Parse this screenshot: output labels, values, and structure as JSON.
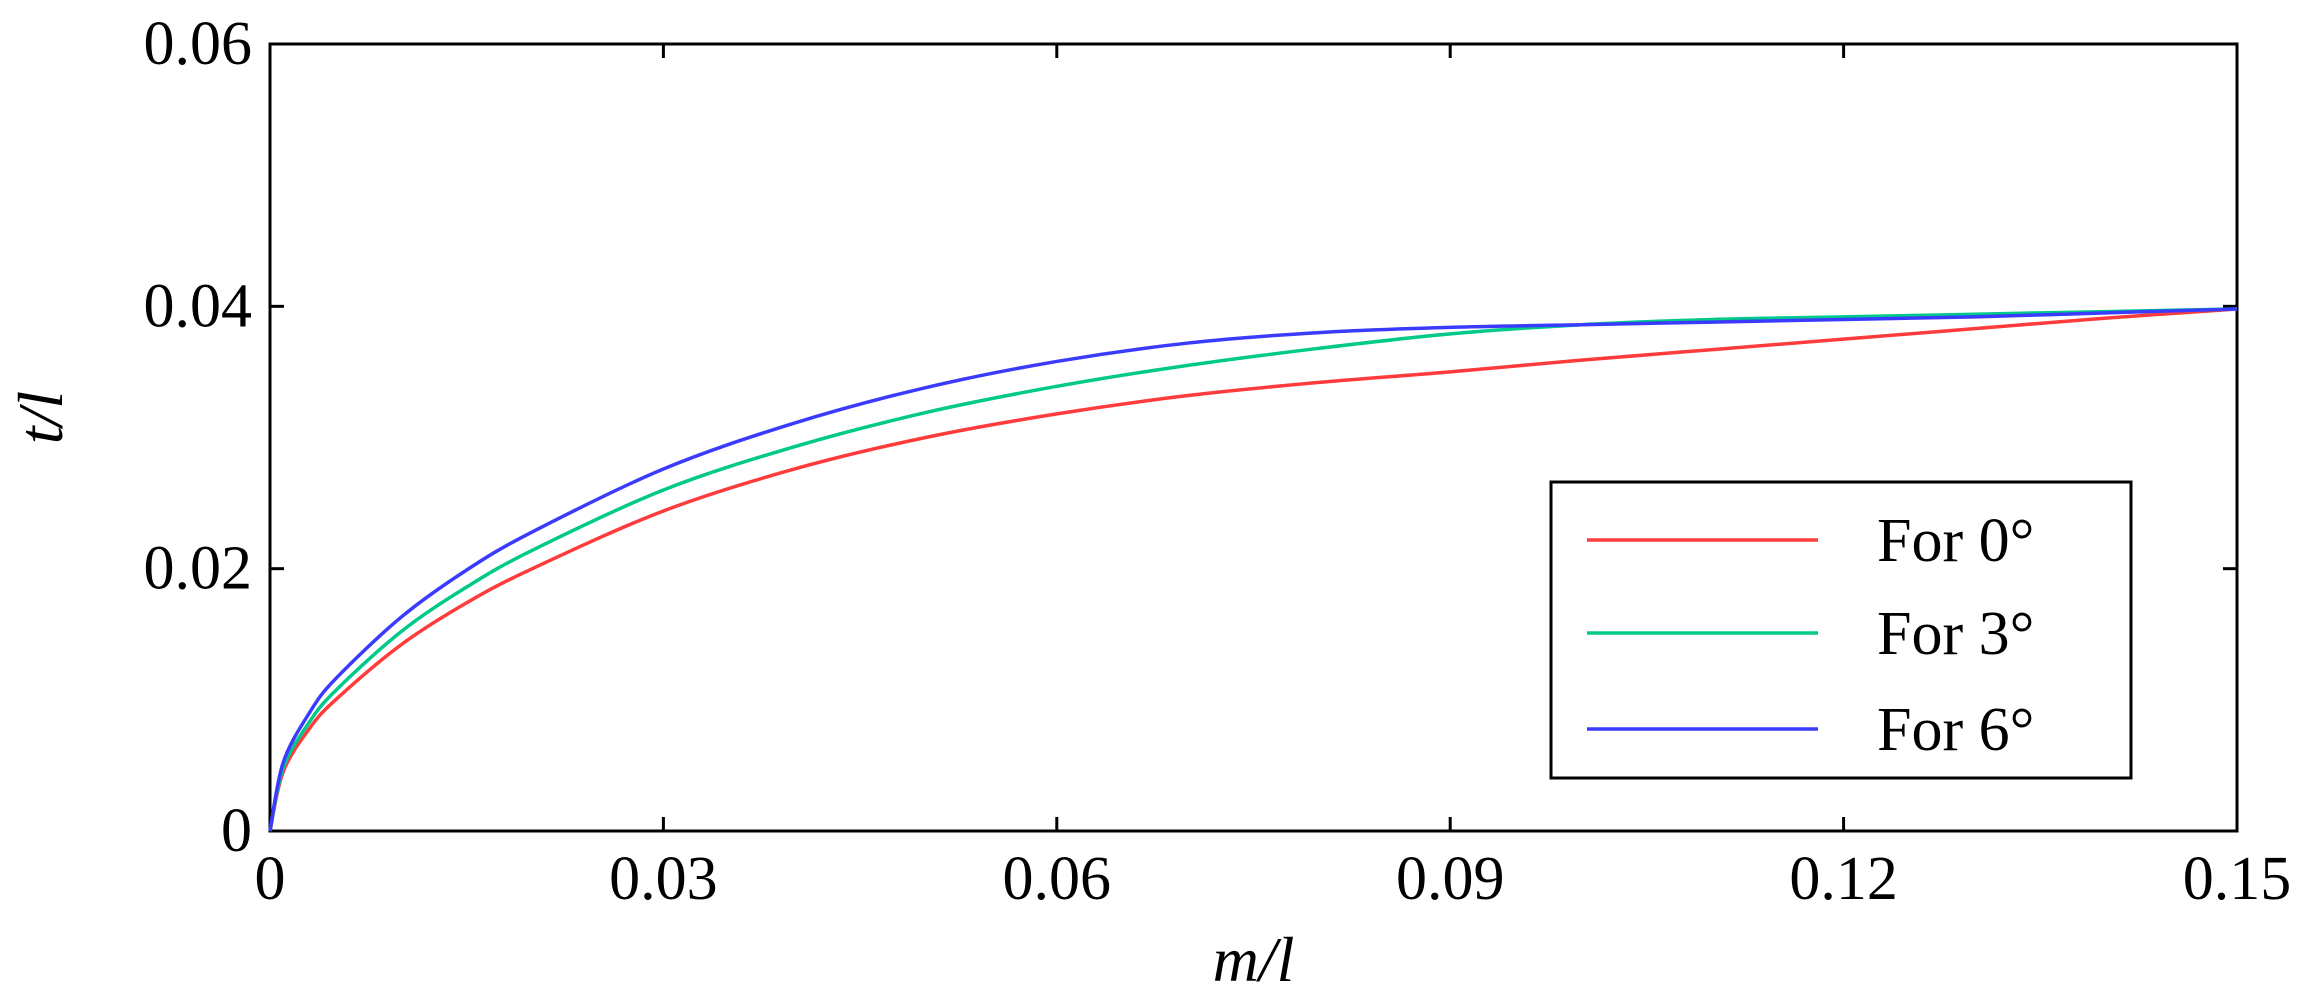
{
  "chart_data": {
    "type": "line",
    "title": "",
    "xlabel": "m/l",
    "ylabel": "t/l",
    "xlim": [
      0,
      0.15
    ],
    "ylim": [
      0,
      0.06
    ],
    "xticks": [
      0,
      0.03,
      0.06,
      0.09,
      0.12,
      0.15
    ],
    "xtick_labels": [
      "0",
      "0.03",
      "0.06",
      "0.09",
      "0.12",
      "0.15"
    ],
    "yticks": [
      0,
      0.02,
      0.04,
      0.06
    ],
    "ytick_labels": [
      "0",
      "0.02",
      "0.04",
      "0.06"
    ],
    "grid": false,
    "legend_position": "right",
    "series": [
      {
        "name": "For 0°",
        "color": "#ff3b3b",
        "x": [
          0,
          0.001,
          0.003,
          0.005,
          0.01,
          0.015,
          0.02,
          0.03,
          0.04,
          0.05,
          0.06,
          0.07,
          0.08,
          0.09,
          0.1,
          0.11,
          0.12,
          0.13,
          0.14,
          0.15
        ],
        "y": [
          0,
          0.0045,
          0.0078,
          0.01,
          0.0142,
          0.0174,
          0.02,
          0.0244,
          0.0276,
          0.03,
          0.0318,
          0.0332,
          0.0342,
          0.035,
          0.0359,
          0.0367,
          0.0375,
          0.0383,
          0.0391,
          0.0398
        ]
      },
      {
        "name": "For 3°",
        "color": "#00c98a",
        "x": [
          0,
          0.001,
          0.003,
          0.005,
          0.01,
          0.015,
          0.02,
          0.03,
          0.04,
          0.05,
          0.06,
          0.07,
          0.08,
          0.09,
          0.1,
          0.11,
          0.12,
          0.13,
          0.14,
          0.15
        ],
        "y": [
          0,
          0.0048,
          0.0083,
          0.0107,
          0.0152,
          0.0186,
          0.0214,
          0.026,
          0.0293,
          0.0319,
          0.0339,
          0.0355,
          0.0368,
          0.0379,
          0.0386,
          0.039,
          0.0392,
          0.0394,
          0.0396,
          0.0398
        ]
      },
      {
        "name": "For 6°",
        "color": "#3b3bff",
        "x": [
          0,
          0.001,
          0.003,
          0.005,
          0.01,
          0.015,
          0.02,
          0.03,
          0.04,
          0.05,
          0.06,
          0.07,
          0.08,
          0.09,
          0.1,
          0.11,
          0.12,
          0.13,
          0.14,
          0.15
        ],
        "y": [
          0,
          0.0052,
          0.009,
          0.0116,
          0.0163,
          0.0199,
          0.0228,
          0.0276,
          0.0311,
          0.0338,
          0.0358,
          0.0372,
          0.038,
          0.0384,
          0.0386,
          0.0388,
          0.039,
          0.0392,
          0.0395,
          0.0398
        ]
      }
    ]
  }
}
